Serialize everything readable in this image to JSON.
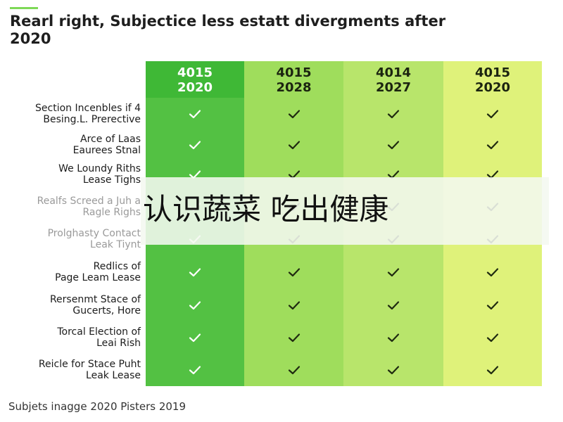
{
  "title": "Rearl right, Subjectice less estatt divergments after 2020",
  "banner_text": "认识蔬菜 吃出健康",
  "footer": "Subjets inagge 2020 Pisters 2019",
  "colors": {
    "col1": "#53c143",
    "col2": "#9fdd5c",
    "col3": "#b8e56b",
    "col4": "#dff27a",
    "check_dark": "#ffffff",
    "check_light": "#1f2a10"
  },
  "chart_data": {
    "type": "table",
    "columns": [
      {
        "line1": "4015",
        "line2": "2020"
      },
      {
        "line1": "4015",
        "line2": "2028"
      },
      {
        "line1": "4014",
        "line2": "2027"
      },
      {
        "line1": "4015",
        "line2": "2020"
      }
    ],
    "rows": [
      {
        "line1": "Section Incenbles if 4",
        "line2": "Besing.L. Prerective",
        "values": [
          true,
          true,
          true,
          true
        ]
      },
      {
        "line1": "Arce of Laas",
        "line2": "Eaurees Stnal",
        "values": [
          true,
          true,
          true,
          true
        ]
      },
      {
        "line1": "We Loundy Riths",
        "line2": "Lease Tighs",
        "values": [
          true,
          true,
          true,
          true
        ]
      },
      {
        "line1": "Realfs Screed a Juh a",
        "line2": "Ragle Righs",
        "values": [
          true,
          true,
          true,
          true
        ]
      },
      {
        "line1": "Prolghasty Contact",
        "line2": "Leak Tiynt",
        "values": [
          true,
          true,
          true,
          true
        ]
      },
      {
        "line1": "Redlics of",
        "line2": "Page Leam Lease",
        "values": [
          true,
          true,
          true,
          true
        ]
      },
      {
        "line1": "Rersenmt Stace of",
        "line2": "Gucerts, Hore",
        "values": [
          true,
          true,
          true,
          true
        ]
      },
      {
        "line1": "Torcal Election of",
        "line2": "Leai Rish",
        "values": [
          true,
          true,
          true,
          true
        ]
      },
      {
        "line1": "Reicle for Stace Puht",
        "line2": "Leak Lease",
        "values": [
          true,
          true,
          true,
          true
        ]
      }
    ]
  }
}
